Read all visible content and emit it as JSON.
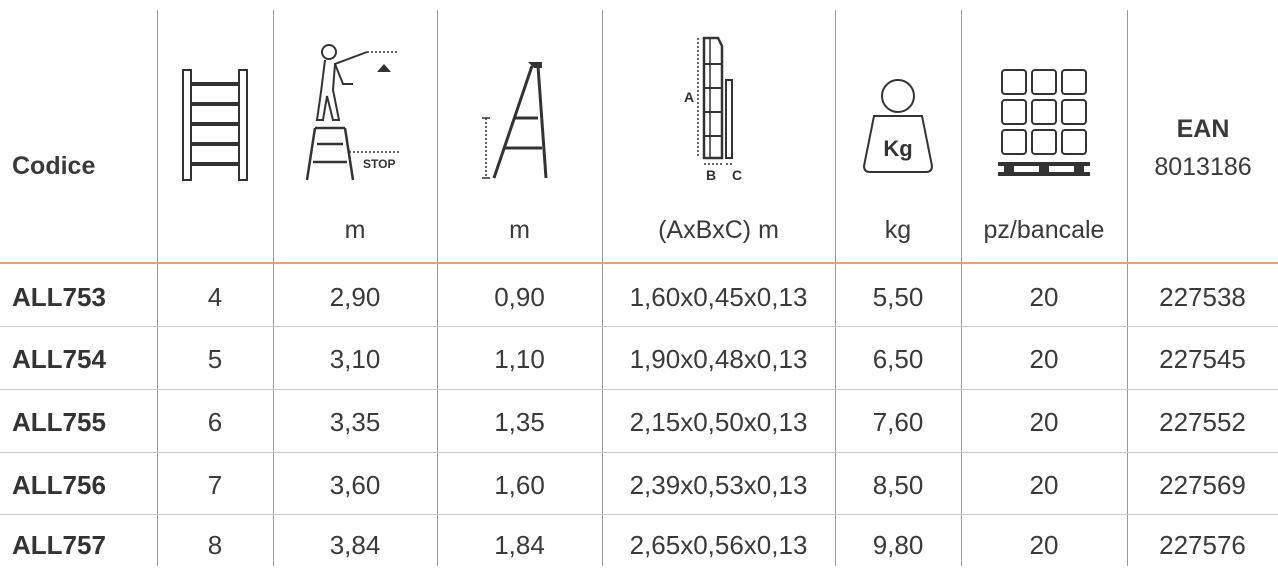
{
  "header": {
    "codice_label": "Codice",
    "ean_label_line1": "EAN",
    "ean_label_line2": "8013186",
    "units": {
      "height": "m",
      "platform": "m",
      "dimensions": "(AxBxC) m",
      "weight": "kg",
      "pallet": "pz/bancale"
    },
    "icon_labels": {
      "stop": "STOP",
      "dim_a": "A",
      "dim_b": "B",
      "dim_c": "C",
      "kg": "Kg"
    },
    "icons": [
      "ladder-steps-icon",
      "person-reach-height-icon",
      "platform-height-icon",
      "ladder-dimensions-icon",
      "weight-icon",
      "pallet-icon"
    ]
  },
  "rows": [
    {
      "code": "ALL753",
      "steps": "4",
      "reach": "2,90",
      "platform": "0,90",
      "dims": "1,60x0,45x0,13",
      "weight": "5,50",
      "pallet": "20",
      "ean": "227538"
    },
    {
      "code": "ALL754",
      "steps": "5",
      "reach": "3,10",
      "platform": "1,10",
      "dims": "1,90x0,48x0,13",
      "weight": "6,50",
      "pallet": "20",
      "ean": "227545"
    },
    {
      "code": "ALL755",
      "steps": "6",
      "reach": "3,35",
      "platform": "1,35",
      "dims": "2,15x0,50x0,13",
      "weight": "7,60",
      "pallet": "20",
      "ean": "227552"
    },
    {
      "code": "ALL756",
      "steps": "7",
      "reach": "3,60",
      "platform": "1,60",
      "dims": "2,39x0,53x0,13",
      "weight": "8,50",
      "pallet": "20",
      "ean": "227569"
    },
    {
      "code": "ALL757",
      "steps": "8",
      "reach": "3,84",
      "platform": "1,84",
      "dims": "2,65x0,56x0,13",
      "weight": "9,80",
      "pallet": "20",
      "ean": "227576"
    }
  ],
  "colors": {
    "text": "#3a3a3a",
    "divider": "#9a9a9a",
    "row_line": "#c8c8c8",
    "accent_line": "#e8a27a"
  }
}
